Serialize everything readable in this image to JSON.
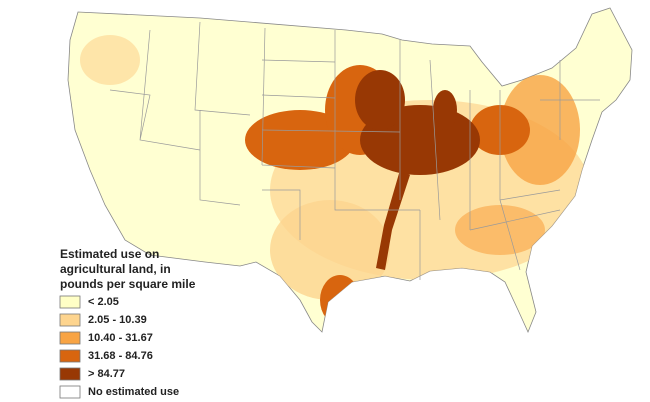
{
  "legend": {
    "title_lines": [
      "Estimated use on",
      "agricultural land, in",
      "pounds per square mile"
    ],
    "items": [
      {
        "label": "< 2.05",
        "color": "#ffffc6"
      },
      {
        "label": "2.05 - 10.39",
        "color": "#fdd48e"
      },
      {
        "label": "10.40 - 31.67",
        "color": "#f8a444"
      },
      {
        "label": "31.68 - 84.76",
        "color": "#d8650f"
      },
      {
        "label": "> 84.77",
        "color": "#983804"
      },
      {
        "label": "No estimated use",
        "color": "#ffffff"
      }
    ]
  }
}
